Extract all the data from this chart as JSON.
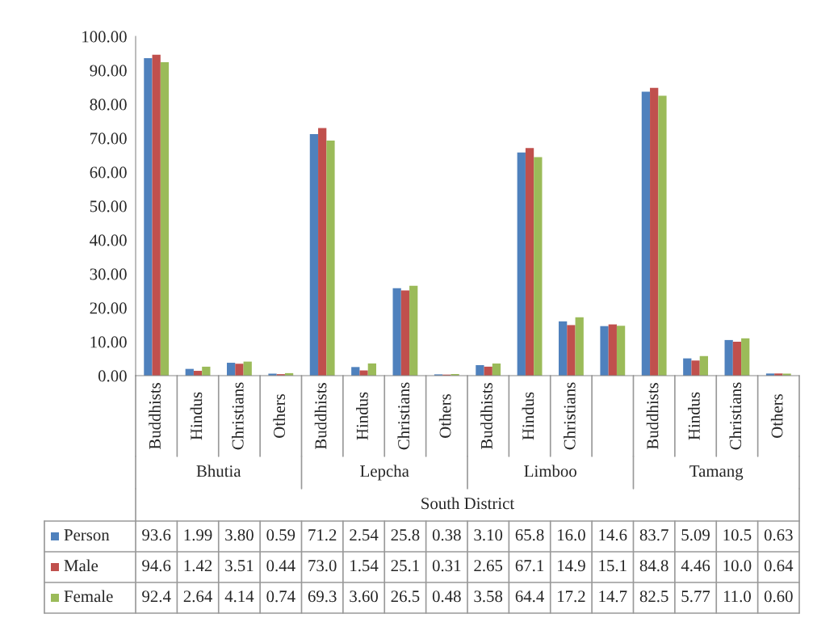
{
  "chart_data": {
    "type": "bar",
    "categories": [
      "Buddhists",
      "Hindus",
      "Christians",
      "Others",
      "Buddhists",
      "Hindus",
      "Christians",
      "Others",
      "Buddhists",
      "Hindus",
      "Christians",
      null,
      "Buddhists",
      "Hindus",
      "Christians",
      "Others"
    ],
    "annotations": [
      "Bhutia",
      "Lepcha",
      "Limboo",
      "Tamang"
    ],
    "xlabel": "South District",
    "series": [
      {
        "name": "Person",
        "color": "#4f81bd",
        "values": [
          93.6,
          1.99,
          3.8,
          0.59,
          71.2,
          2.54,
          25.8,
          0.38,
          3.1,
          65.8,
          16.0,
          14.6,
          83.7,
          5.09,
          10.5,
          0.63
        ],
        "value_labels": [
          "93.6",
          "1.99",
          "3.80",
          "0.59",
          "71.2",
          "2.54",
          "25.8",
          "0.38",
          "3.10",
          "65.8",
          "16.0",
          "14.6",
          "83.7",
          "5.09",
          "10.5",
          "0.63"
        ]
      },
      {
        "name": "Male",
        "color": "#c0504d",
        "values": [
          94.6,
          1.42,
          3.51,
          0.44,
          73.0,
          1.54,
          25.1,
          0.31,
          2.65,
          67.1,
          14.9,
          15.1,
          84.8,
          4.46,
          10.0,
          0.64
        ],
        "value_labels": [
          "94.6",
          "1.42",
          "3.51",
          "0.44",
          "73.0",
          "1.54",
          "25.1",
          "0.31",
          "2.65",
          "67.1",
          "14.9",
          "15.1",
          "84.8",
          "4.46",
          "10.0",
          "0.64"
        ]
      },
      {
        "name": "Female",
        "color": "#9bbb59",
        "values": [
          92.4,
          2.64,
          4.14,
          0.74,
          69.3,
          3.6,
          26.5,
          0.48,
          3.58,
          64.4,
          17.2,
          14.7,
          82.5,
          5.77,
          11.0,
          0.6
        ],
        "value_labels": [
          "92.4",
          "2.64",
          "4.14",
          "0.74",
          "69.3",
          "3.60",
          "26.5",
          "0.48",
          "3.58",
          "64.4",
          "17.2",
          "14.7",
          "82.5",
          "5.77",
          "11.0",
          "0.60"
        ]
      }
    ],
    "ylim": [
      0,
      100
    ],
    "yticks": [
      {
        "value": 0,
        "label": "0.00"
      },
      {
        "value": 10,
        "label": "10.00"
      },
      {
        "value": 20,
        "label": "20.00"
      },
      {
        "value": 30,
        "label": "30.00"
      },
      {
        "value": 40,
        "label": "40.00"
      },
      {
        "value": 50,
        "label": "50.00"
      },
      {
        "value": 60,
        "label": "60.00"
      },
      {
        "value": 70,
        "label": "70.00"
      },
      {
        "value": 80,
        "label": "80.00"
      },
      {
        "value": 90,
        "label": "90.00"
      },
      {
        "value": 100,
        "label": "100.00"
      }
    ],
    "grid": false,
    "legend": "bottom"
  }
}
